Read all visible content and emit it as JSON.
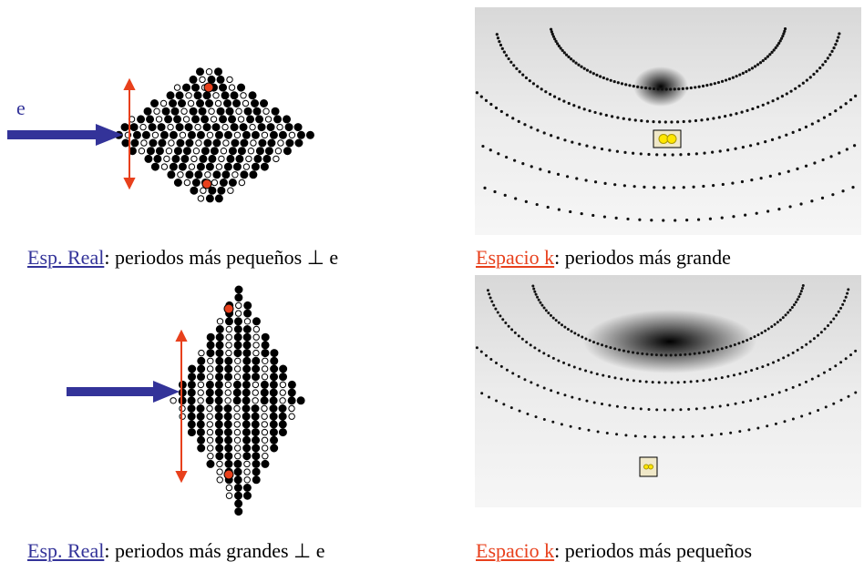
{
  "arrow_label": "e",
  "captions": [
    {
      "link": "Esp. Real",
      "text": ": periodos más pequeños ⊥ e"
    },
    {
      "link": "Espacio k",
      "text": ": periodos más grande"
    },
    {
      "link": "Esp. Real",
      "text": ": periodos más grandes ⊥ e"
    },
    {
      "link": "Espacio k",
      "text": ": periodos más pequeños"
    }
  ]
}
